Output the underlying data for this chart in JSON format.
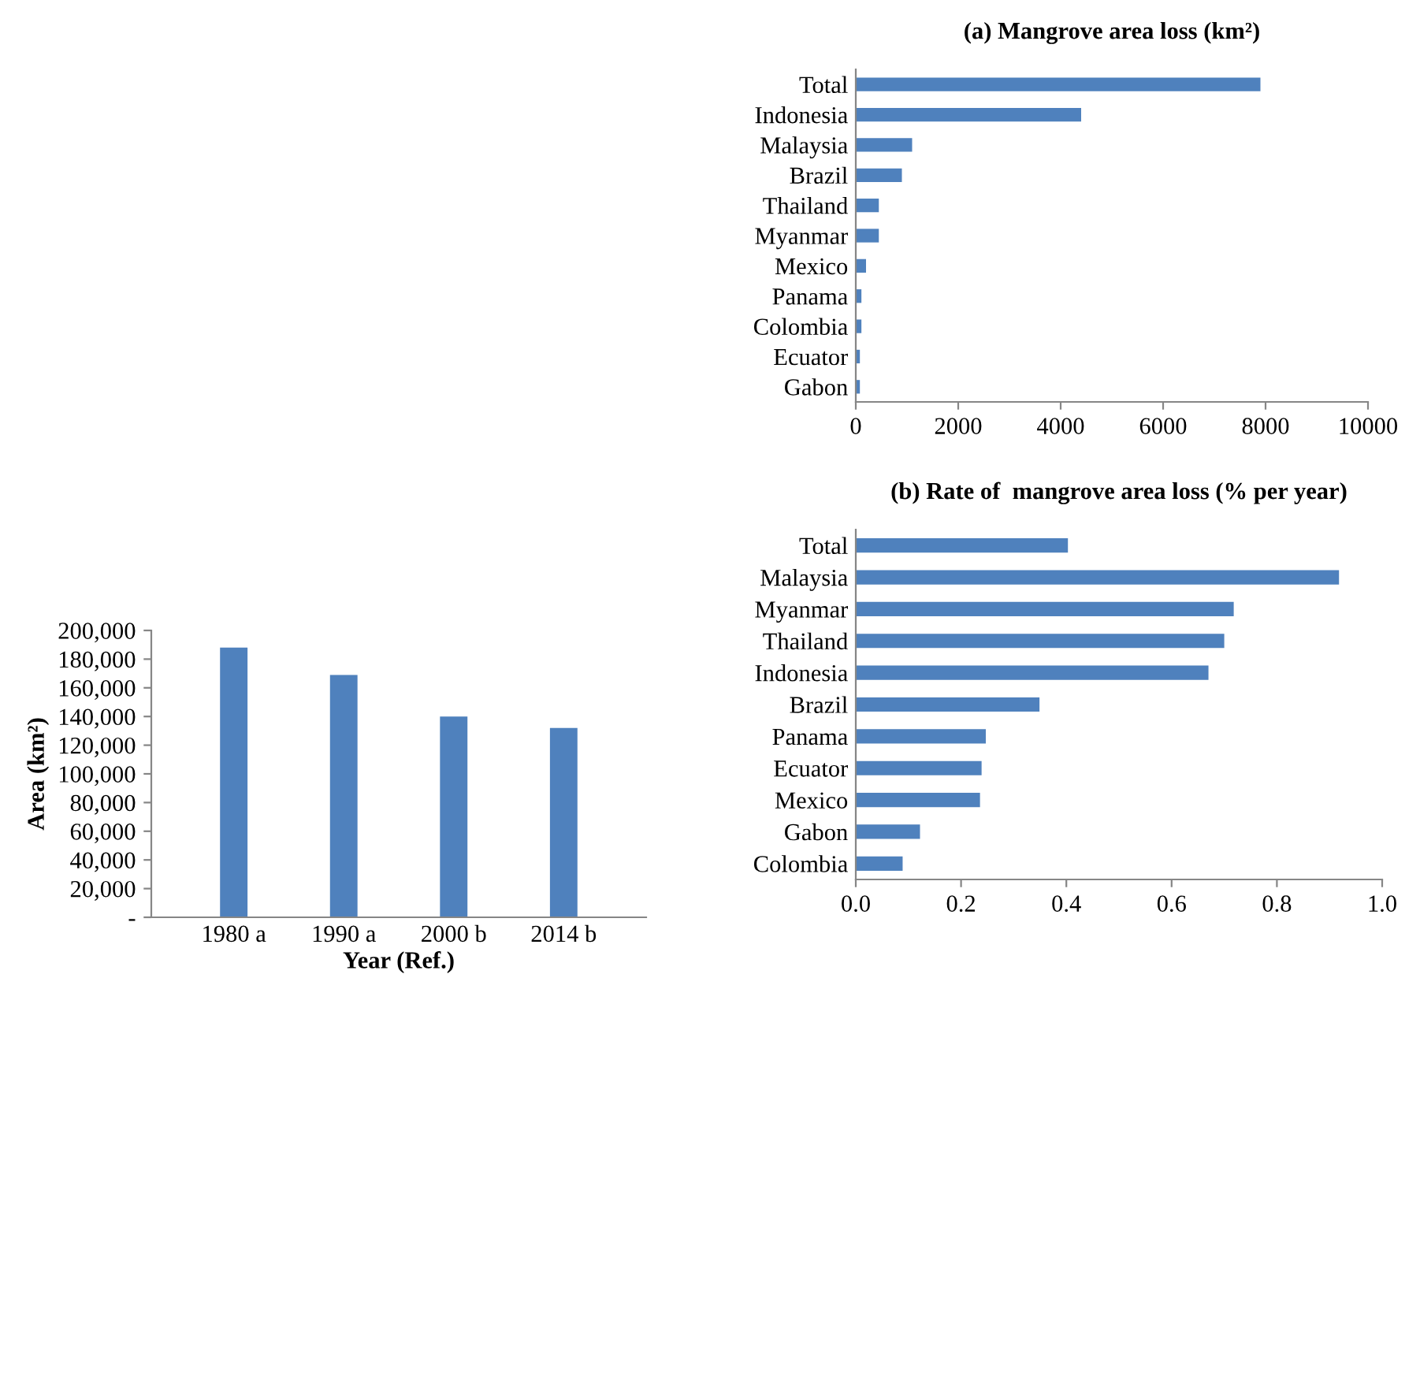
{
  "chart_data": [
    {
      "type": "bar",
      "orientation": "horizontal",
      "title": "(a) Mangrove area loss (km²)",
      "categories": [
        "Total",
        "Indonesia",
        "Malaysia",
        "Brazil",
        "Thailand",
        "Myanmar",
        "Mexico",
        "Panama",
        "Colombia",
        "Ecuator",
        "Gabon"
      ],
      "values": [
        7900,
        4400,
        1100,
        900,
        450,
        450,
        200,
        110,
        110,
        80,
        80
      ],
      "color": "#4f81bd",
      "xlim": [
        0,
        10000
      ],
      "xticks": [
        0,
        2000,
        4000,
        6000,
        8000,
        10000
      ],
      "grid": false
    },
    {
      "type": "bar",
      "orientation": "horizontal",
      "title": "(b) Rate of  mangrove area loss (% per year)",
      "categories": [
        "Total",
        "Malaysia",
        "Myanmar",
        "Thailand",
        "Indonesia",
        "Brazil",
        "Panama",
        "Ecuator",
        "Mexico",
        "Gabon",
        "Colombia"
      ],
      "values": [
        0.403,
        0.918,
        0.718,
        0.7,
        0.67,
        0.349,
        0.247,
        0.239,
        0.236,
        0.122,
        0.089
      ],
      "color": "#4f81bd",
      "xlim": [
        0,
        1.0
      ],
      "xticks": [
        {
          "value": 0,
          "label": "0.0"
        },
        0.2,
        0.4,
        0.6,
        0.8,
        {
          "value": 1.0,
          "label": "1.0"
        }
      ],
      "grid": false
    },
    {
      "type": "bar",
      "xlabel": "Year (Ref.)",
      "ylabel": "Area (km²)",
      "categories": [
        "1980 a",
        "1990 a",
        "2000 b",
        "2014 b"
      ],
      "values": [
        188000,
        169000,
        140000,
        132000
      ],
      "color": "#4f81bd",
      "ylim": [
        0,
        200000
      ],
      "yticks": [
        {
          "value": 0,
          "label": "-"
        },
        {
          "value": 20000,
          "label": "20,000"
        },
        {
          "value": 40000,
          "label": "40,000"
        },
        {
          "value": 60000,
          "label": "60,000"
        },
        {
          "value": 80000,
          "label": "80,000"
        },
        {
          "value": 100000,
          "label": "100,000"
        },
        {
          "value": 120000,
          "label": "120,000"
        },
        {
          "value": 140000,
          "label": "140,000"
        },
        {
          "value": 160000,
          "label": "160,000"
        },
        {
          "value": 180000,
          "label": "180,000"
        },
        {
          "value": 200000,
          "label": "200,000"
        }
      ],
      "grid": false
    }
  ]
}
